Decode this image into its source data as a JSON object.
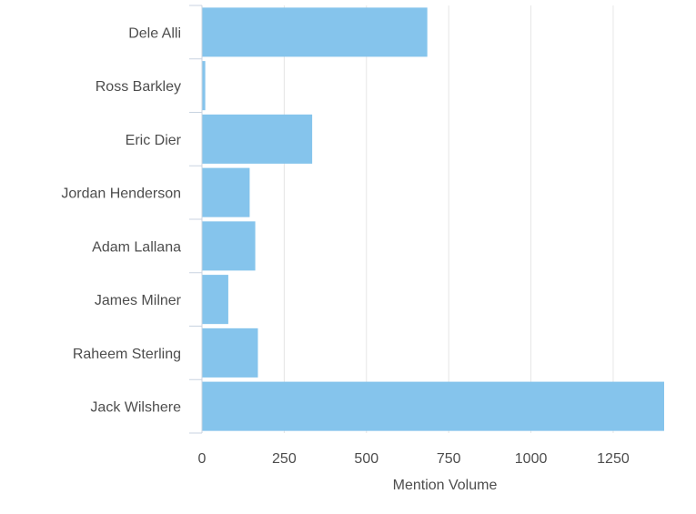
{
  "chart_data": {
    "type": "bar",
    "orientation": "horizontal",
    "categories": [
      "Dele Alli",
      "Ross Barkley",
      "Eric Dier",
      "Jordan Henderson",
      "Adam Lallana",
      "James Milner",
      "Raheem Sterling",
      "Jack Wilshere"
    ],
    "values": [
      685,
      10,
      335,
      145,
      162,
      80,
      170,
      1405
    ],
    "xlabel": "Mention Volume",
    "xticks": [
      0,
      250,
      500,
      750,
      1000,
      1250
    ],
    "tick_labels": [
      "0",
      "250",
      "500",
      "750",
      "1000",
      "1250"
    ],
    "xlim": [
      0,
      1405
    ],
    "grid": "vertical",
    "bar_color": "#85c4ec"
  }
}
